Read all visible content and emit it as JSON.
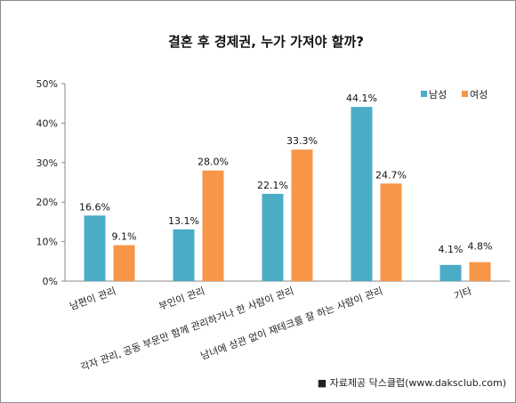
{
  "chart_data": {
    "type": "bar",
    "title": "결혼 후 경제권, 누가 가져야 할까?",
    "categories": [
      "남편이 관리",
      "부인이 관리",
      "각자 관리, 공동 부문만 함께 관리하거나 한 사람이 관리",
      "남녀에 상관 없이 재테크를 잘 하는 사람이 관리",
      "기타"
    ],
    "series": [
      {
        "name": "남성",
        "color": "#4bacc6",
        "values": [
          16.6,
          13.1,
          22.1,
          44.1,
          4.1
        ],
        "labels": [
          "16.6%",
          "13.1%",
          "22.1%",
          "44.1%",
          "4.1%"
        ]
      },
      {
        "name": "여성",
        "color": "#f79646",
        "values": [
          9.1,
          28.0,
          33.3,
          24.7,
          4.8
        ],
        "labels": [
          "9.1%",
          "28.0%",
          "33.3%",
          "24.7%",
          "4.8%"
        ]
      }
    ],
    "ylim": [
      0,
      50
    ],
    "yticks": [
      "0%",
      "10%",
      "20%",
      "30%",
      "40%",
      "50%"
    ],
    "grid": false,
    "legend_position": "top-right"
  },
  "source_note": "■ 자료제공 닥스클럽(www.daksclub.com)"
}
